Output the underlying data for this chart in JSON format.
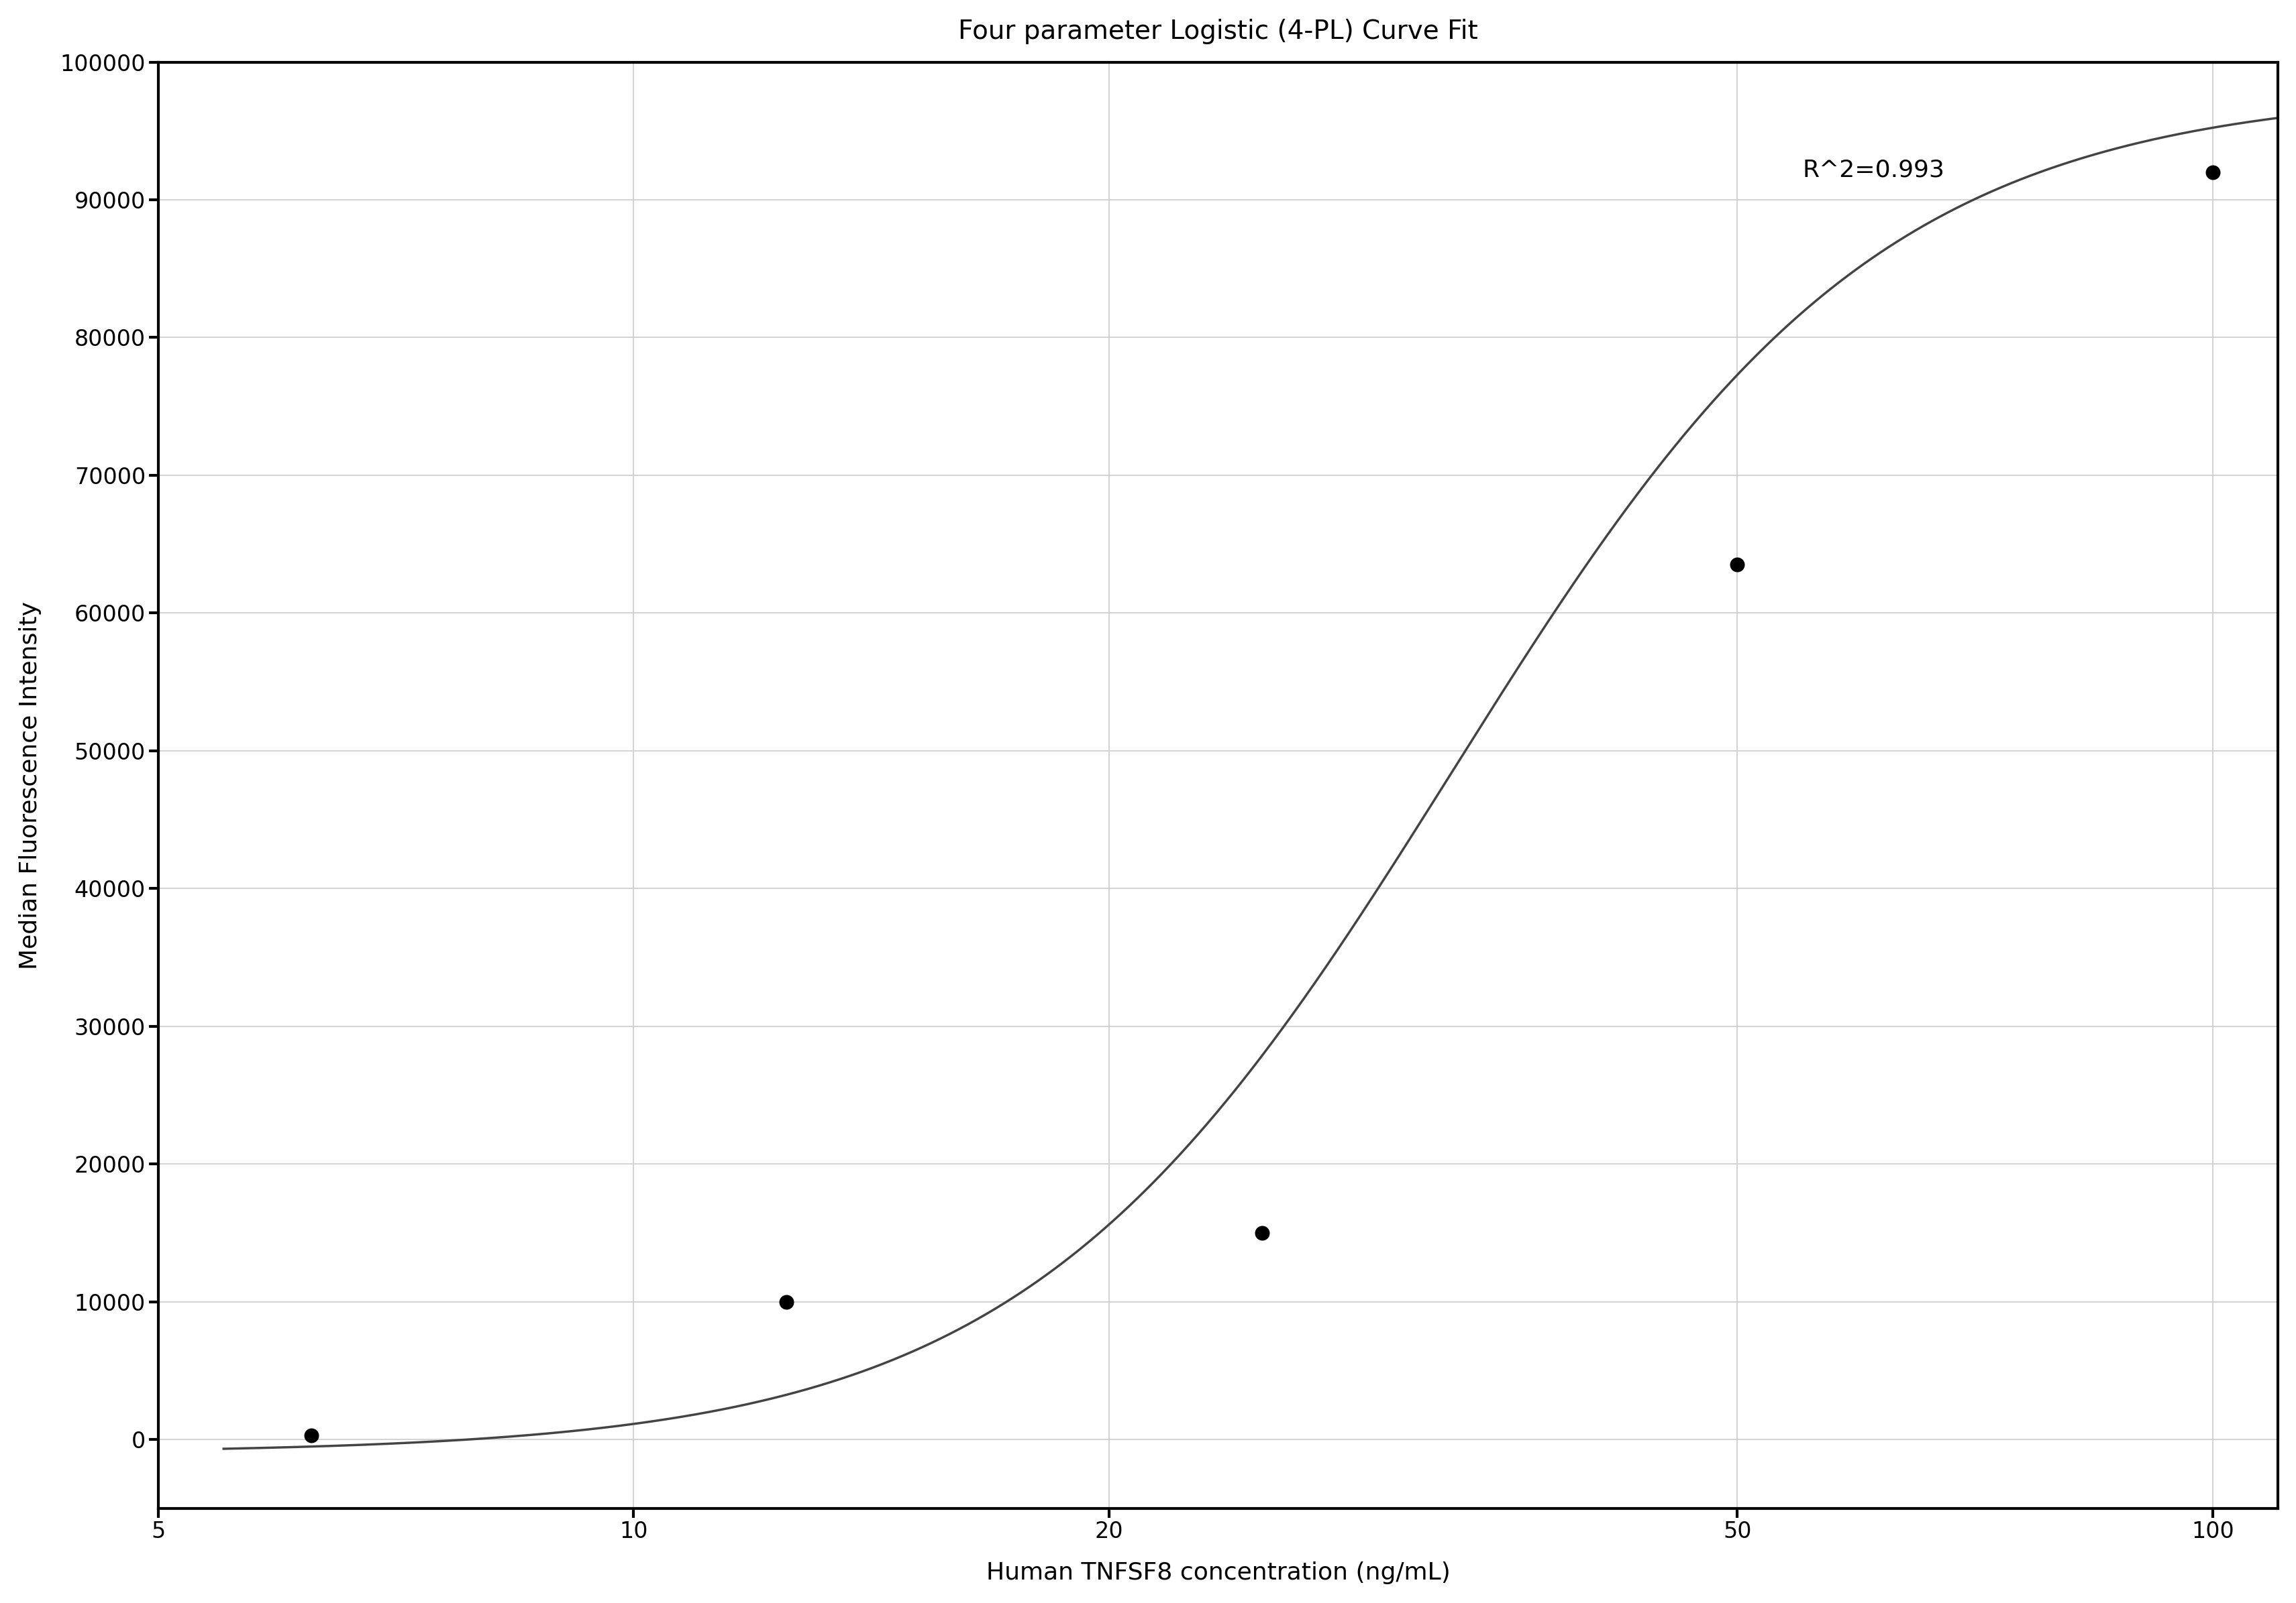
{
  "title": "Four parameter Logistic (4-PL) Curve Fit",
  "xlabel": "Human TNFSF8 concentration (ng/mL)",
  "ylabel": "Median Fluorescence Intensity",
  "data_x": [
    6.25,
    12.5,
    25.0,
    50.0,
    100.0
  ],
  "data_y": [
    300,
    10000,
    15000,
    63500,
    92000
  ],
  "xlim": [
    5,
    110
  ],
  "ylim": [
    -5000,
    100000
  ],
  "yticks": [
    0,
    10000,
    20000,
    30000,
    40000,
    50000,
    60000,
    70000,
    80000,
    90000,
    100000
  ],
  "xticks": [
    5,
    10,
    20,
    50,
    100
  ],
  "r_squared": "R^2=0.993",
  "r_squared_x": 55,
  "r_squared_y": 93000,
  "curve_color": "#444444",
  "dot_color": "#000000",
  "grid_color": "#cccccc",
  "background_color": "#ffffff",
  "title_fontsize": 28,
  "label_fontsize": 26,
  "tick_fontsize": 24,
  "annotation_fontsize": 26,
  "4pl_A": -1000,
  "4pl_D": 98000,
  "4pl_C": 33.0,
  "4pl_B": 3.2
}
